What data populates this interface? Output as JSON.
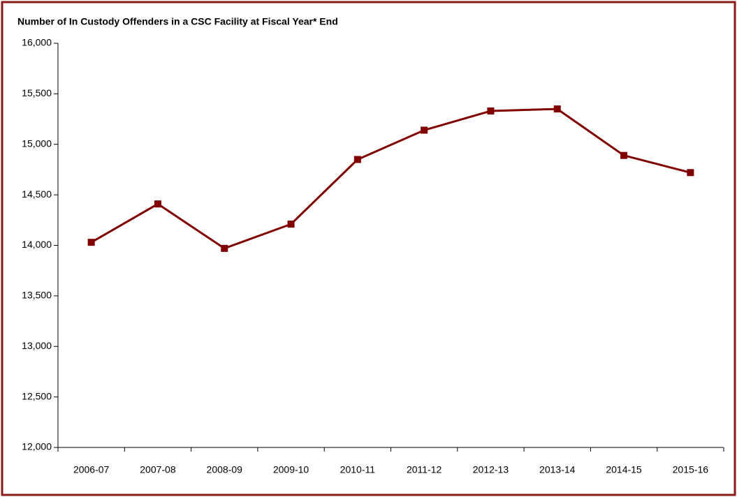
{
  "chart_data": {
    "type": "line",
    "title": "Number of In Custody Offenders in a CSC Facility at Fiscal Year* End",
    "categories": [
      "2006-07",
      "2007-08",
      "2008-09",
      "2009-10",
      "2010-11",
      "2011-12",
      "2012-13",
      "2013-14",
      "2014-15",
      "2015-16"
    ],
    "series": [
      {
        "name": "In Custody Offenders",
        "color": "#800000",
        "values": [
          14030,
          14410,
          13970,
          14210,
          14850,
          15140,
          15330,
          15350,
          14890,
          14720
        ]
      }
    ],
    "ylim": [
      12000,
      16000
    ],
    "yticks": [
      {
        "value": 12000,
        "label": "12,000"
      },
      {
        "value": 12500,
        "label": "12,500"
      },
      {
        "value": 13000,
        "label": "13,000"
      },
      {
        "value": 13500,
        "label": "13,500"
      },
      {
        "value": 14000,
        "label": "14,000"
      },
      {
        "value": 14500,
        "label": "14,500"
      },
      {
        "value": 15000,
        "label": "15,000"
      },
      {
        "value": 15500,
        "label": "15,500"
      },
      {
        "value": 16000,
        "label": "16,000"
      }
    ],
    "grid": false
  }
}
